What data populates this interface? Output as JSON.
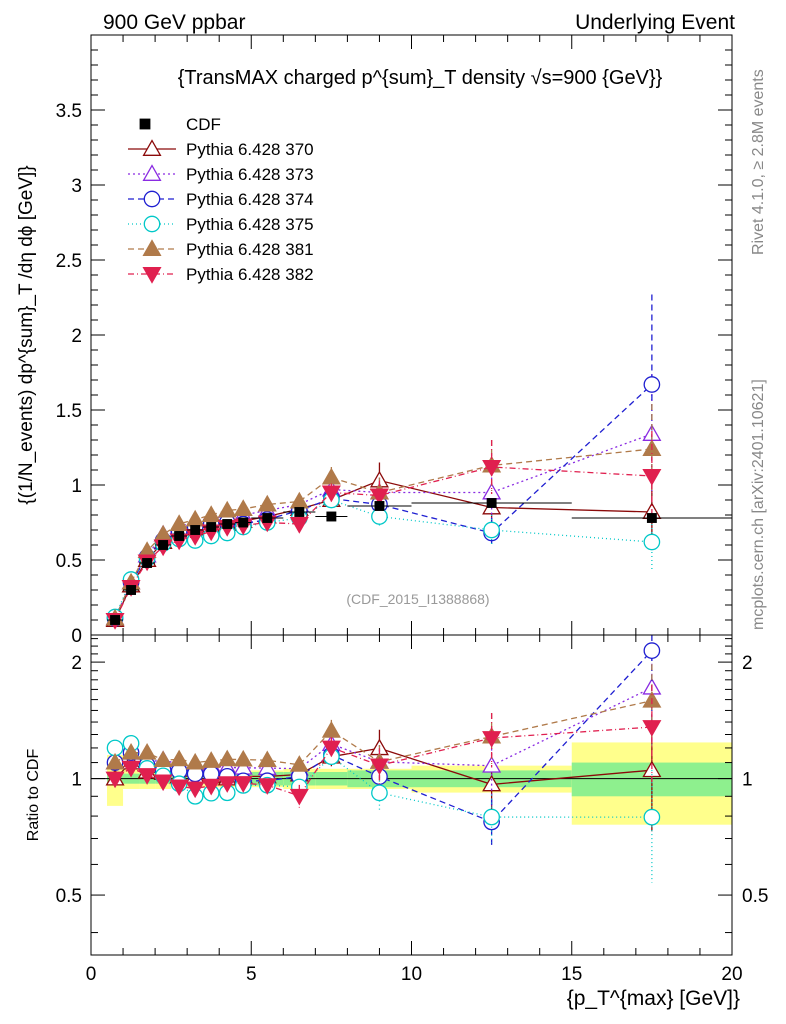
{
  "header": {
    "left": "900 GeV ppbar",
    "right": "Underlying Event",
    "side_top": "Rivet 4.1.0, ≥ 2.8M events",
    "side_bottom": "mcplots.cern.ch [arXiv:2401.10621]",
    "watermark": "(CDF_2015_I1388868)"
  },
  "chart_data": {
    "type": "scatter",
    "title": "{TransMAX charged p^{sum}_T density √s=900 {GeV}}",
    "ylabel_main": "{(1/N_events) dp^{sum}_T /dη dϕ [GeV]}",
    "ylabel_ratio": "Ratio to CDF",
    "xlabel": "{p_T^{max} [GeV]}",
    "xlim": [
      0,
      20
    ],
    "ylim_main": [
      0,
      4
    ],
    "ylim_ratio": [
      0.35,
      2.35
    ],
    "x_ticks": [
      "0",
      "5",
      "10",
      "15",
      "20"
    ],
    "y_ticks_main": [
      "0",
      "0.5",
      "1",
      "1.5",
      "2",
      "2.5",
      "3",
      "3.5"
    ],
    "y_ticks_ratio": [
      "0.5",
      "1",
      "2"
    ],
    "x": [
      0.75,
      1.25,
      1.75,
      2.25,
      2.75,
      3.25,
      3.75,
      4.25,
      4.75,
      5.5,
      6.5,
      7.5,
      9.0,
      12.5,
      17.5
    ],
    "x_err": [
      0.25,
      0.25,
      0.25,
      0.25,
      0.25,
      0.25,
      0.25,
      0.25,
      0.25,
      0.5,
      0.5,
      0.5,
      1.0,
      2.5,
      2.5
    ],
    "data": {
      "name": "CDF",
      "values": [
        0.1,
        0.3,
        0.48,
        0.6,
        0.66,
        0.7,
        0.72,
        0.74,
        0.75,
        0.78,
        0.82,
        0.79,
        0.86,
        0.88,
        0.78
      ],
      "band_stat": [
        0.03,
        0.03,
        0.03,
        0.03,
        0.03,
        0.03,
        0.03,
        0.03,
        0.03,
        0.04,
        0.04,
        0.04,
        0.05,
        0.05,
        0.1
      ],
      "band_total": [
        0.15,
        0.06,
        0.06,
        0.06,
        0.05,
        0.05,
        0.05,
        0.05,
        0.05,
        0.05,
        0.06,
        0.06,
        0.06,
        0.08,
        0.24
      ]
    },
    "series": [
      {
        "name": "Pythia 6.428 370",
        "color": "#8b0a0a",
        "marker": "triangle-up-open",
        "dash": "",
        "values": [
          0.1,
          0.33,
          0.5,
          0.62,
          0.67,
          0.71,
          0.73,
          0.74,
          0.76,
          0.79,
          0.84,
          0.9,
          1.03,
          0.85,
          0.82
        ],
        "err": [
          0.01,
          0.01,
          0.01,
          0.01,
          0.01,
          0.01,
          0.01,
          0.01,
          0.01,
          0.02,
          0.03,
          0.05,
          0.12,
          0.15,
          0.25
        ]
      },
      {
        "name": "Pythia 6.428 373",
        "color": "#8a2be2",
        "marker": "triangle-up-open",
        "dash": "2,3",
        "values": [
          0.11,
          0.35,
          0.53,
          0.67,
          0.72,
          0.76,
          0.78,
          0.79,
          0.8,
          0.83,
          0.87,
          0.97,
          0.95,
          0.95,
          1.34
        ],
        "err": [
          0.01,
          0.01,
          0.01,
          0.01,
          0.01,
          0.01,
          0.01,
          0.01,
          0.01,
          0.02,
          0.03,
          0.05,
          0.1,
          0.2,
          0.4
        ]
      },
      {
        "name": "Pythia 6.428 374",
        "color": "#1f1fd1",
        "marker": "circle-open",
        "dash": "6,4",
        "values": [
          0.11,
          0.35,
          0.52,
          0.63,
          0.69,
          0.72,
          0.74,
          0.75,
          0.74,
          0.77,
          0.83,
          0.91,
          0.87,
          0.68,
          1.67
        ],
        "err": [
          0.01,
          0.01,
          0.01,
          0.01,
          0.01,
          0.01,
          0.01,
          0.01,
          0.01,
          0.02,
          0.03,
          0.05,
          0.1,
          0.1,
          0.6
        ]
      },
      {
        "name": "Pythia 6.428 375",
        "color": "#00c8c8",
        "marker": "circle-open",
        "dash": "1,3",
        "values": [
          0.12,
          0.37,
          0.51,
          0.61,
          0.64,
          0.63,
          0.66,
          0.68,
          0.72,
          0.75,
          0.78,
          0.9,
          0.79,
          0.7,
          0.62
        ],
        "err": [
          0.01,
          0.01,
          0.01,
          0.01,
          0.01,
          0.01,
          0.01,
          0.01,
          0.01,
          0.02,
          0.03,
          0.05,
          0.08,
          0.1,
          0.2
        ]
      },
      {
        "name": "Pythia 6.428 381",
        "color": "#b07a4a",
        "marker": "triangle-up-filled",
        "dash": "6,4",
        "values": [
          0.11,
          0.35,
          0.56,
          0.67,
          0.74,
          0.77,
          0.8,
          0.83,
          0.84,
          0.87,
          0.89,
          1.05,
          0.95,
          1.13,
          1.24
        ],
        "err": [
          0.01,
          0.01,
          0.01,
          0.01,
          0.01,
          0.01,
          0.01,
          0.01,
          0.01,
          0.02,
          0.03,
          0.07,
          0.1,
          0.17,
          0.3
        ]
      },
      {
        "name": "Pythia 6.428 382",
        "color": "#e0204f",
        "marker": "triangle-down-filled",
        "dash": "6,3,1,3",
        "values": [
          0.1,
          0.32,
          0.49,
          0.59,
          0.63,
          0.66,
          0.69,
          0.72,
          0.73,
          0.75,
          0.74,
          0.95,
          0.93,
          1.12,
          1.06
        ],
        "err": [
          0.01,
          0.01,
          0.01,
          0.01,
          0.01,
          0.01,
          0.01,
          0.01,
          0.01,
          0.02,
          0.05,
          0.06,
          0.1,
          0.18,
          0.3
        ]
      }
    ]
  }
}
